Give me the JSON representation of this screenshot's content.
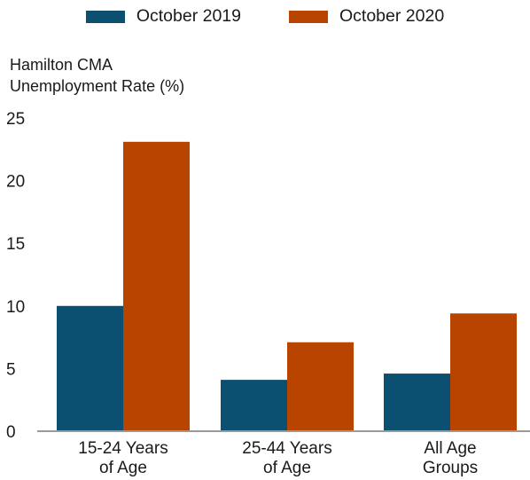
{
  "chart_data": {
    "type": "bar",
    "title": "",
    "ylabel_lines": [
      "Hamilton CMA",
      "Unemployment Rate (%)"
    ],
    "xlabel": "",
    "categories": [
      [
        "15-24 Years",
        "of Age"
      ],
      [
        "25-44 Years",
        "of Age"
      ],
      [
        "All Age",
        "Groups"
      ]
    ],
    "series": [
      {
        "name": "October 2019",
        "color": "#0b4f71",
        "values": [
          10.0,
          4.1,
          4.6
        ]
      },
      {
        "name": "October 2020",
        "color": "#b84400",
        "values": [
          23.1,
          7.1,
          9.4
        ]
      }
    ],
    "ylim": [
      0,
      25
    ],
    "yticks": [
      0,
      5,
      10,
      15,
      20,
      25
    ],
    "grid": false,
    "legend": "top-center"
  }
}
